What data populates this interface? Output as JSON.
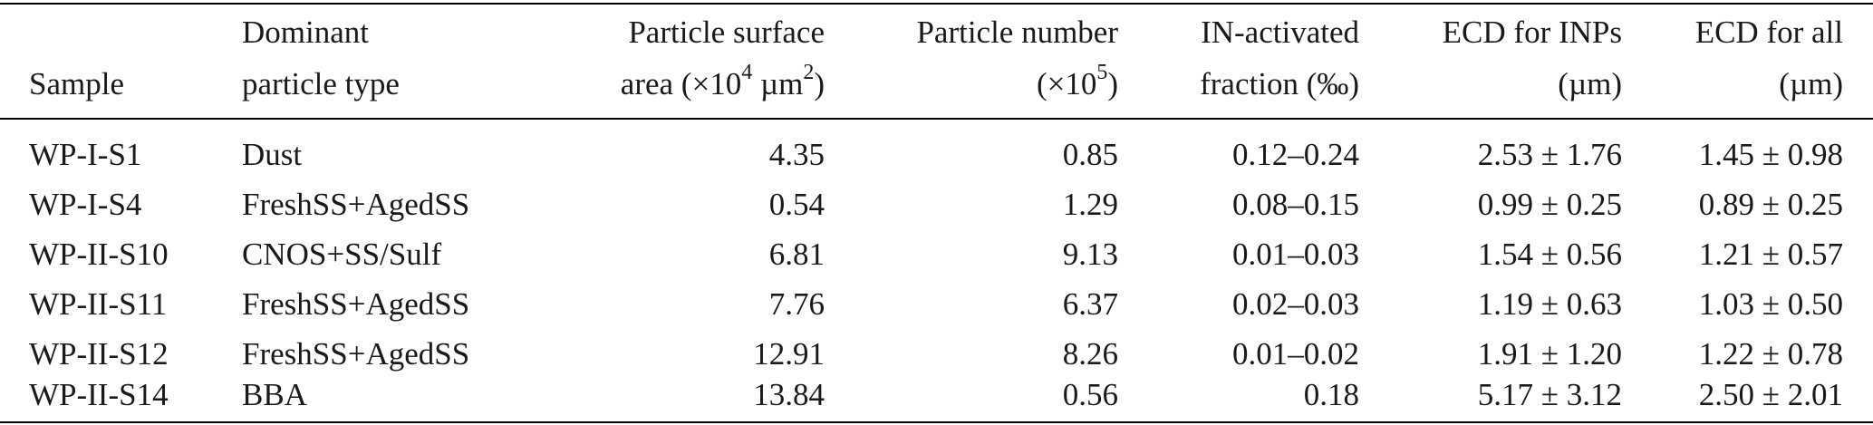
{
  "table": {
    "headers": {
      "sample": "Sample",
      "type_line1": "Dominant",
      "type_line2": "particle type",
      "area_line1": "Particle surface",
      "area_line2_pre": "area (×10",
      "area_line2_sup": "4",
      "area_line2_mid": " µm",
      "area_line2_sup2": "2",
      "area_line2_post": ")",
      "num_line1": "Particle number",
      "num_line2_pre": "(×10",
      "num_line2_sup": "5",
      "num_line2_post": ")",
      "frac_line1": "IN-activated",
      "frac_line2": "fraction (‰)",
      "ecdi_line1": "ECD for INPs",
      "ecdi_line2": "(µm)",
      "ecda_line1": "ECD for all",
      "ecda_line2": "(µm)"
    },
    "rows": [
      {
        "sample": "WP-I-S1",
        "type": "Dust",
        "area": "4.35",
        "number": "0.85",
        "fraction": "0.12–0.24",
        "ecd_inps": "2.53 ± 1.76",
        "ecd_all": "1.45 ± 0.98"
      },
      {
        "sample": "WP-I-S4",
        "type": "FreshSS+AgedSS",
        "area": "0.54",
        "number": "1.29",
        "fraction": "0.08–0.15",
        "ecd_inps": "0.99 ± 0.25",
        "ecd_all": "0.89 ± 0.25"
      },
      {
        "sample": "WP-II-S10",
        "type": "CNOS+SS/Sulf",
        "area": "6.81",
        "number": "9.13",
        "fraction": "0.01–0.03",
        "ecd_inps": "1.54 ± 0.56",
        "ecd_all": "1.21 ± 0.57"
      },
      {
        "sample": "WP-II-S11",
        "type": "FreshSS+AgedSS",
        "area": "7.76",
        "number": "6.37",
        "fraction": "0.02–0.03",
        "ecd_inps": "1.19 ± 0.63",
        "ecd_all": "1.03 ± 0.50"
      },
      {
        "sample": "WP-II-S12",
        "type": "FreshSS+AgedSS",
        "area": "12.91",
        "number": "8.26",
        "fraction": "0.01–0.02",
        "ecd_inps": "1.91 ± 1.20",
        "ecd_all": "1.22 ± 0.78"
      },
      {
        "sample": "WP-II-S14",
        "type": "BBA",
        "area": "13.84",
        "number": "0.56",
        "fraction": "0.18",
        "ecd_inps": "5.17 ± 3.12",
        "ecd_all": "2.50 ± 2.01"
      }
    ]
  }
}
